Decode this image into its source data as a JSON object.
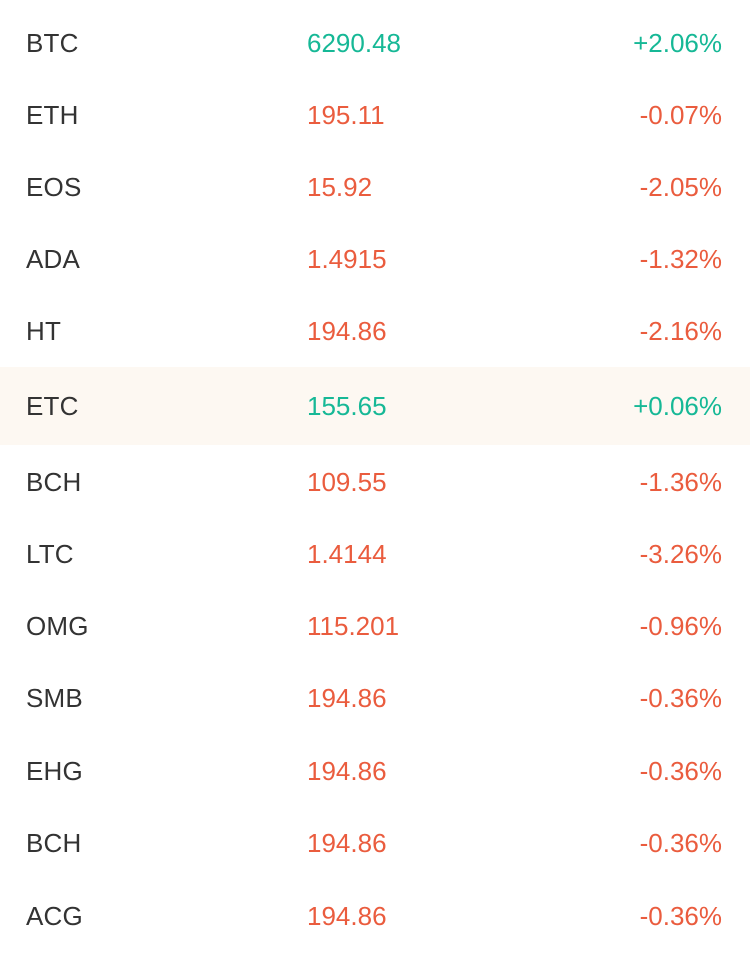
{
  "colors": {
    "up": "#16b896",
    "down": "#ea5c3e",
    "highlight_bg": "#fdf8f2",
    "symbol": "#333333"
  },
  "rows": [
    {
      "symbol": "BTC",
      "price": "6290.48",
      "change": "+2.06%",
      "direction": "up",
      "highlighted": false
    },
    {
      "symbol": "ETH",
      "price": "195.11",
      "change": "-0.07%",
      "direction": "down",
      "highlighted": false
    },
    {
      "symbol": "EOS",
      "price": "15.92",
      "change": "-2.05%",
      "direction": "down",
      "highlighted": false
    },
    {
      "symbol": "ADA",
      "price": "1.4915",
      "change": "-1.32%",
      "direction": "down",
      "highlighted": false
    },
    {
      "symbol": "HT",
      "price": "194.86",
      "change": "-2.16%",
      "direction": "down",
      "highlighted": false
    },
    {
      "symbol": "ETC",
      "price": "155.65",
      "change": "+0.06%",
      "direction": "up",
      "highlighted": true
    },
    {
      "symbol": "BCH",
      "price": "109.55",
      "change": "-1.36%",
      "direction": "down",
      "highlighted": false
    },
    {
      "symbol": "LTC",
      "price": "1.4144",
      "change": "-3.26%",
      "direction": "down",
      "highlighted": false
    },
    {
      "symbol": "OMG",
      "price": "115.201",
      "change": "-0.96%",
      "direction": "down",
      "highlighted": false
    },
    {
      "symbol": "SMB",
      "price": "194.86",
      "change": "-0.36%",
      "direction": "down",
      "highlighted": false
    },
    {
      "symbol": "EHG",
      "price": "194.86",
      "change": "-0.36%",
      "direction": "down",
      "highlighted": false
    },
    {
      "symbol": "BCH",
      "price": "194.86",
      "change": "-0.36%",
      "direction": "down",
      "highlighted": false
    },
    {
      "symbol": "ACG",
      "price": "194.86",
      "change": "-0.36%",
      "direction": "down",
      "highlighted": false
    }
  ]
}
